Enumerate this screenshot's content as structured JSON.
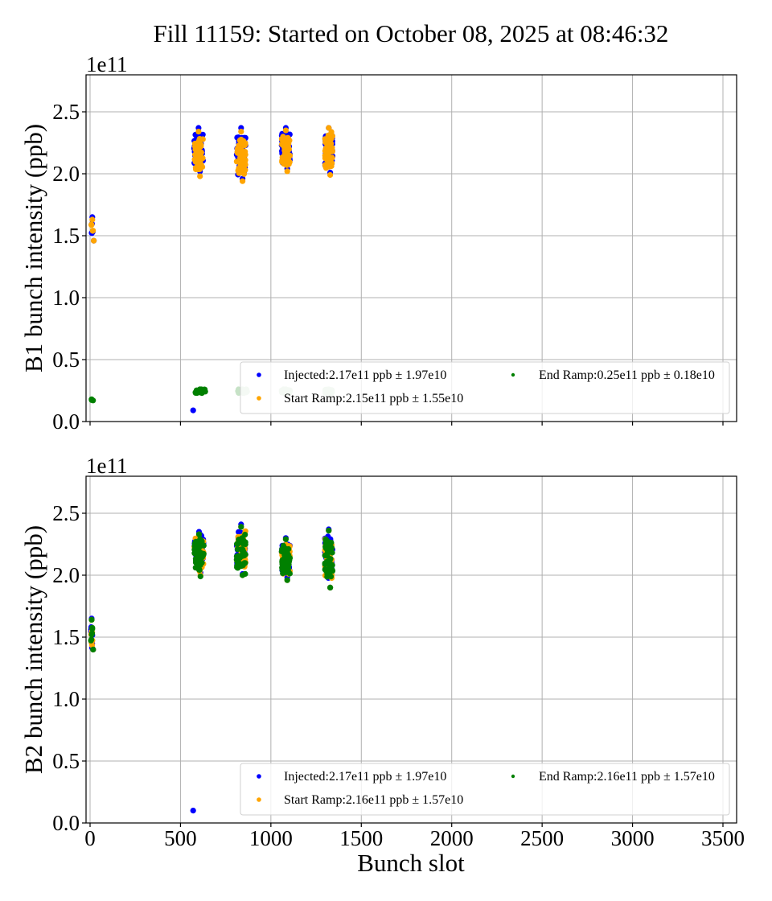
{
  "chart_data": {
    "type": "scatter",
    "title": "Fill 11159: Started on October 08, 2025 at 08:46:32",
    "xlabel": "Bunch slot",
    "x_ticks": [
      0,
      500,
      1000,
      1500,
      2000,
      2500,
      3000,
      3500
    ],
    "x_tick_labels": [
      "0",
      "500",
      "1000",
      "1500",
      "2000",
      "2500",
      "3000",
      "3500"
    ],
    "xlim": [
      -20,
      3580
    ],
    "grid": true,
    "colors": {
      "injected": "#0000ff",
      "start_ramp": "#ffa500",
      "end_ramp": "#008000"
    },
    "panels": [
      {
        "id": "b1",
        "ylabel": "B1 bunch intensity (ppb)",
        "y_offset_label": "1e11",
        "y_ticks": [
          0.0,
          0.5,
          1.0,
          1.5,
          2.0,
          2.5
        ],
        "y_tick_labels": [
          "0.0",
          "0.5",
          "1.0",
          "1.5",
          "2.0",
          "2.5"
        ],
        "ylim": [
          0.0,
          2.8
        ],
        "legend_location": "lower-right",
        "series": [
          {
            "key": "injected",
            "name": "Injected:2.17e11 ppb ± 1.97e10",
            "clusters": [
              {
                "x_start": 5,
                "x_end": 20,
                "y_min": 1.46,
                "y_max": 1.65,
                "n": 4
              },
              {
                "x_start": 565,
                "x_end": 635,
                "y_min": 2.02,
                "y_max": 2.37,
                "n": 48
              },
              {
                "x_start": 800,
                "x_end": 870,
                "y_min": 1.96,
                "y_max": 2.37,
                "n": 48
              },
              {
                "x_start": 1050,
                "x_end": 1115,
                "y_min": 2.04,
                "y_max": 2.37,
                "n": 48
              },
              {
                "x_start": 1290,
                "x_end": 1350,
                "y_min": 2.01,
                "y_max": 2.37,
                "n": 48
              }
            ],
            "points": [
              [
                570,
                0.09
              ]
            ]
          },
          {
            "key": "start_ramp",
            "name": "Start Ramp:2.15e11 ppb ± 1.55e10",
            "clusters": [
              {
                "x_start": 5,
                "x_end": 20,
                "y_min": 1.46,
                "y_max": 1.63,
                "n": 4
              },
              {
                "x_start": 565,
                "x_end": 635,
                "y_min": 1.98,
                "y_max": 2.34,
                "n": 48
              },
              {
                "x_start": 800,
                "x_end": 870,
                "y_min": 1.94,
                "y_max": 2.34,
                "n": 48
              },
              {
                "x_start": 1050,
                "x_end": 1115,
                "y_min": 2.02,
                "y_max": 2.35,
                "n": 48
              },
              {
                "x_start": 1290,
                "x_end": 1350,
                "y_min": 1.99,
                "y_max": 2.37,
                "n": 48
              }
            ],
            "points": []
          },
          {
            "key": "end_ramp",
            "name": "End Ramp:0.25e11 ppb ± 0.18e10",
            "clusters": [
              {
                "x_start": 5,
                "x_end": 12,
                "y_min": 0.17,
                "y_max": 0.18,
                "n": 2
              },
              {
                "x_start": 570,
                "x_end": 650,
                "y_min": 0.23,
                "y_max": 0.26,
                "n": 30
              },
              {
                "x_start": 805,
                "x_end": 880,
                "y_min": 0.23,
                "y_max": 0.26,
                "n": 30
              },
              {
                "x_start": 1050,
                "x_end": 1115,
                "y_min": 0.23,
                "y_max": 0.26,
                "n": 30
              },
              {
                "x_start": 1290,
                "x_end": 1350,
                "y_min": 0.23,
                "y_max": 0.26,
                "n": 30
              }
            ],
            "points": []
          }
        ]
      },
      {
        "id": "b2",
        "ylabel": "B2 bunch intensity (ppb)",
        "y_offset_label": "1e11",
        "y_ticks": [
          0.0,
          0.5,
          1.0,
          1.5,
          2.0,
          2.5
        ],
        "y_tick_labels": [
          "0.0",
          "0.5",
          "1.0",
          "1.5",
          "2.0",
          "2.5"
        ],
        "ylim": [
          0.0,
          2.8
        ],
        "legend_location": "lower-right",
        "series": [
          {
            "key": "injected",
            "name": "Injected:2.17e11 ppb ± 1.97e10",
            "clusters": [
              {
                "x_start": 3,
                "x_end": 15,
                "y_min": 1.4,
                "y_max": 1.65,
                "n": 6
              },
              {
                "x_start": 565,
                "x_end": 640,
                "y_min": 2.02,
                "y_max": 2.35,
                "n": 48
              },
              {
                "x_start": 800,
                "x_end": 870,
                "y_min": 2.01,
                "y_max": 2.41,
                "n": 48
              },
              {
                "x_start": 1050,
                "x_end": 1115,
                "y_min": 1.98,
                "y_max": 2.3,
                "n": 48
              },
              {
                "x_start": 1290,
                "x_end": 1350,
                "y_min": 1.9,
                "y_max": 2.37,
                "n": 48
              }
            ],
            "points": [
              [
                570,
                0.1
              ]
            ]
          },
          {
            "key": "start_ramp",
            "name": "Start Ramp:2.16e11 ppb ± 1.57e10",
            "clusters": [
              {
                "x_start": 3,
                "x_end": 15,
                "y_min": 1.4,
                "y_max": 1.64,
                "n": 6
              },
              {
                "x_start": 565,
                "x_end": 640,
                "y_min": 2.0,
                "y_max": 2.33,
                "n": 48
              },
              {
                "x_start": 800,
                "x_end": 870,
                "y_min": 2.0,
                "y_max": 2.39,
                "n": 48
              },
              {
                "x_start": 1050,
                "x_end": 1115,
                "y_min": 1.96,
                "y_max": 2.29,
                "n": 48
              },
              {
                "x_start": 1290,
                "x_end": 1350,
                "y_min": 1.9,
                "y_max": 2.36,
                "n": 48
              }
            ],
            "points": []
          },
          {
            "key": "end_ramp",
            "name": "End Ramp:2.16e11 ppb ± 1.57e10",
            "clusters": [
              {
                "x_start": 3,
                "x_end": 15,
                "y_min": 1.4,
                "y_max": 1.64,
                "n": 6
              },
              {
                "x_start": 565,
                "x_end": 640,
                "y_min": 1.99,
                "y_max": 2.33,
                "n": 48
              },
              {
                "x_start": 800,
                "x_end": 870,
                "y_min": 2.0,
                "y_max": 2.39,
                "n": 48
              },
              {
                "x_start": 1050,
                "x_end": 1115,
                "y_min": 1.96,
                "y_max": 2.29,
                "n": 48
              },
              {
                "x_start": 1290,
                "x_end": 1350,
                "y_min": 1.9,
                "y_max": 2.36,
                "n": 48
              }
            ],
            "points": []
          }
        ]
      }
    ]
  }
}
